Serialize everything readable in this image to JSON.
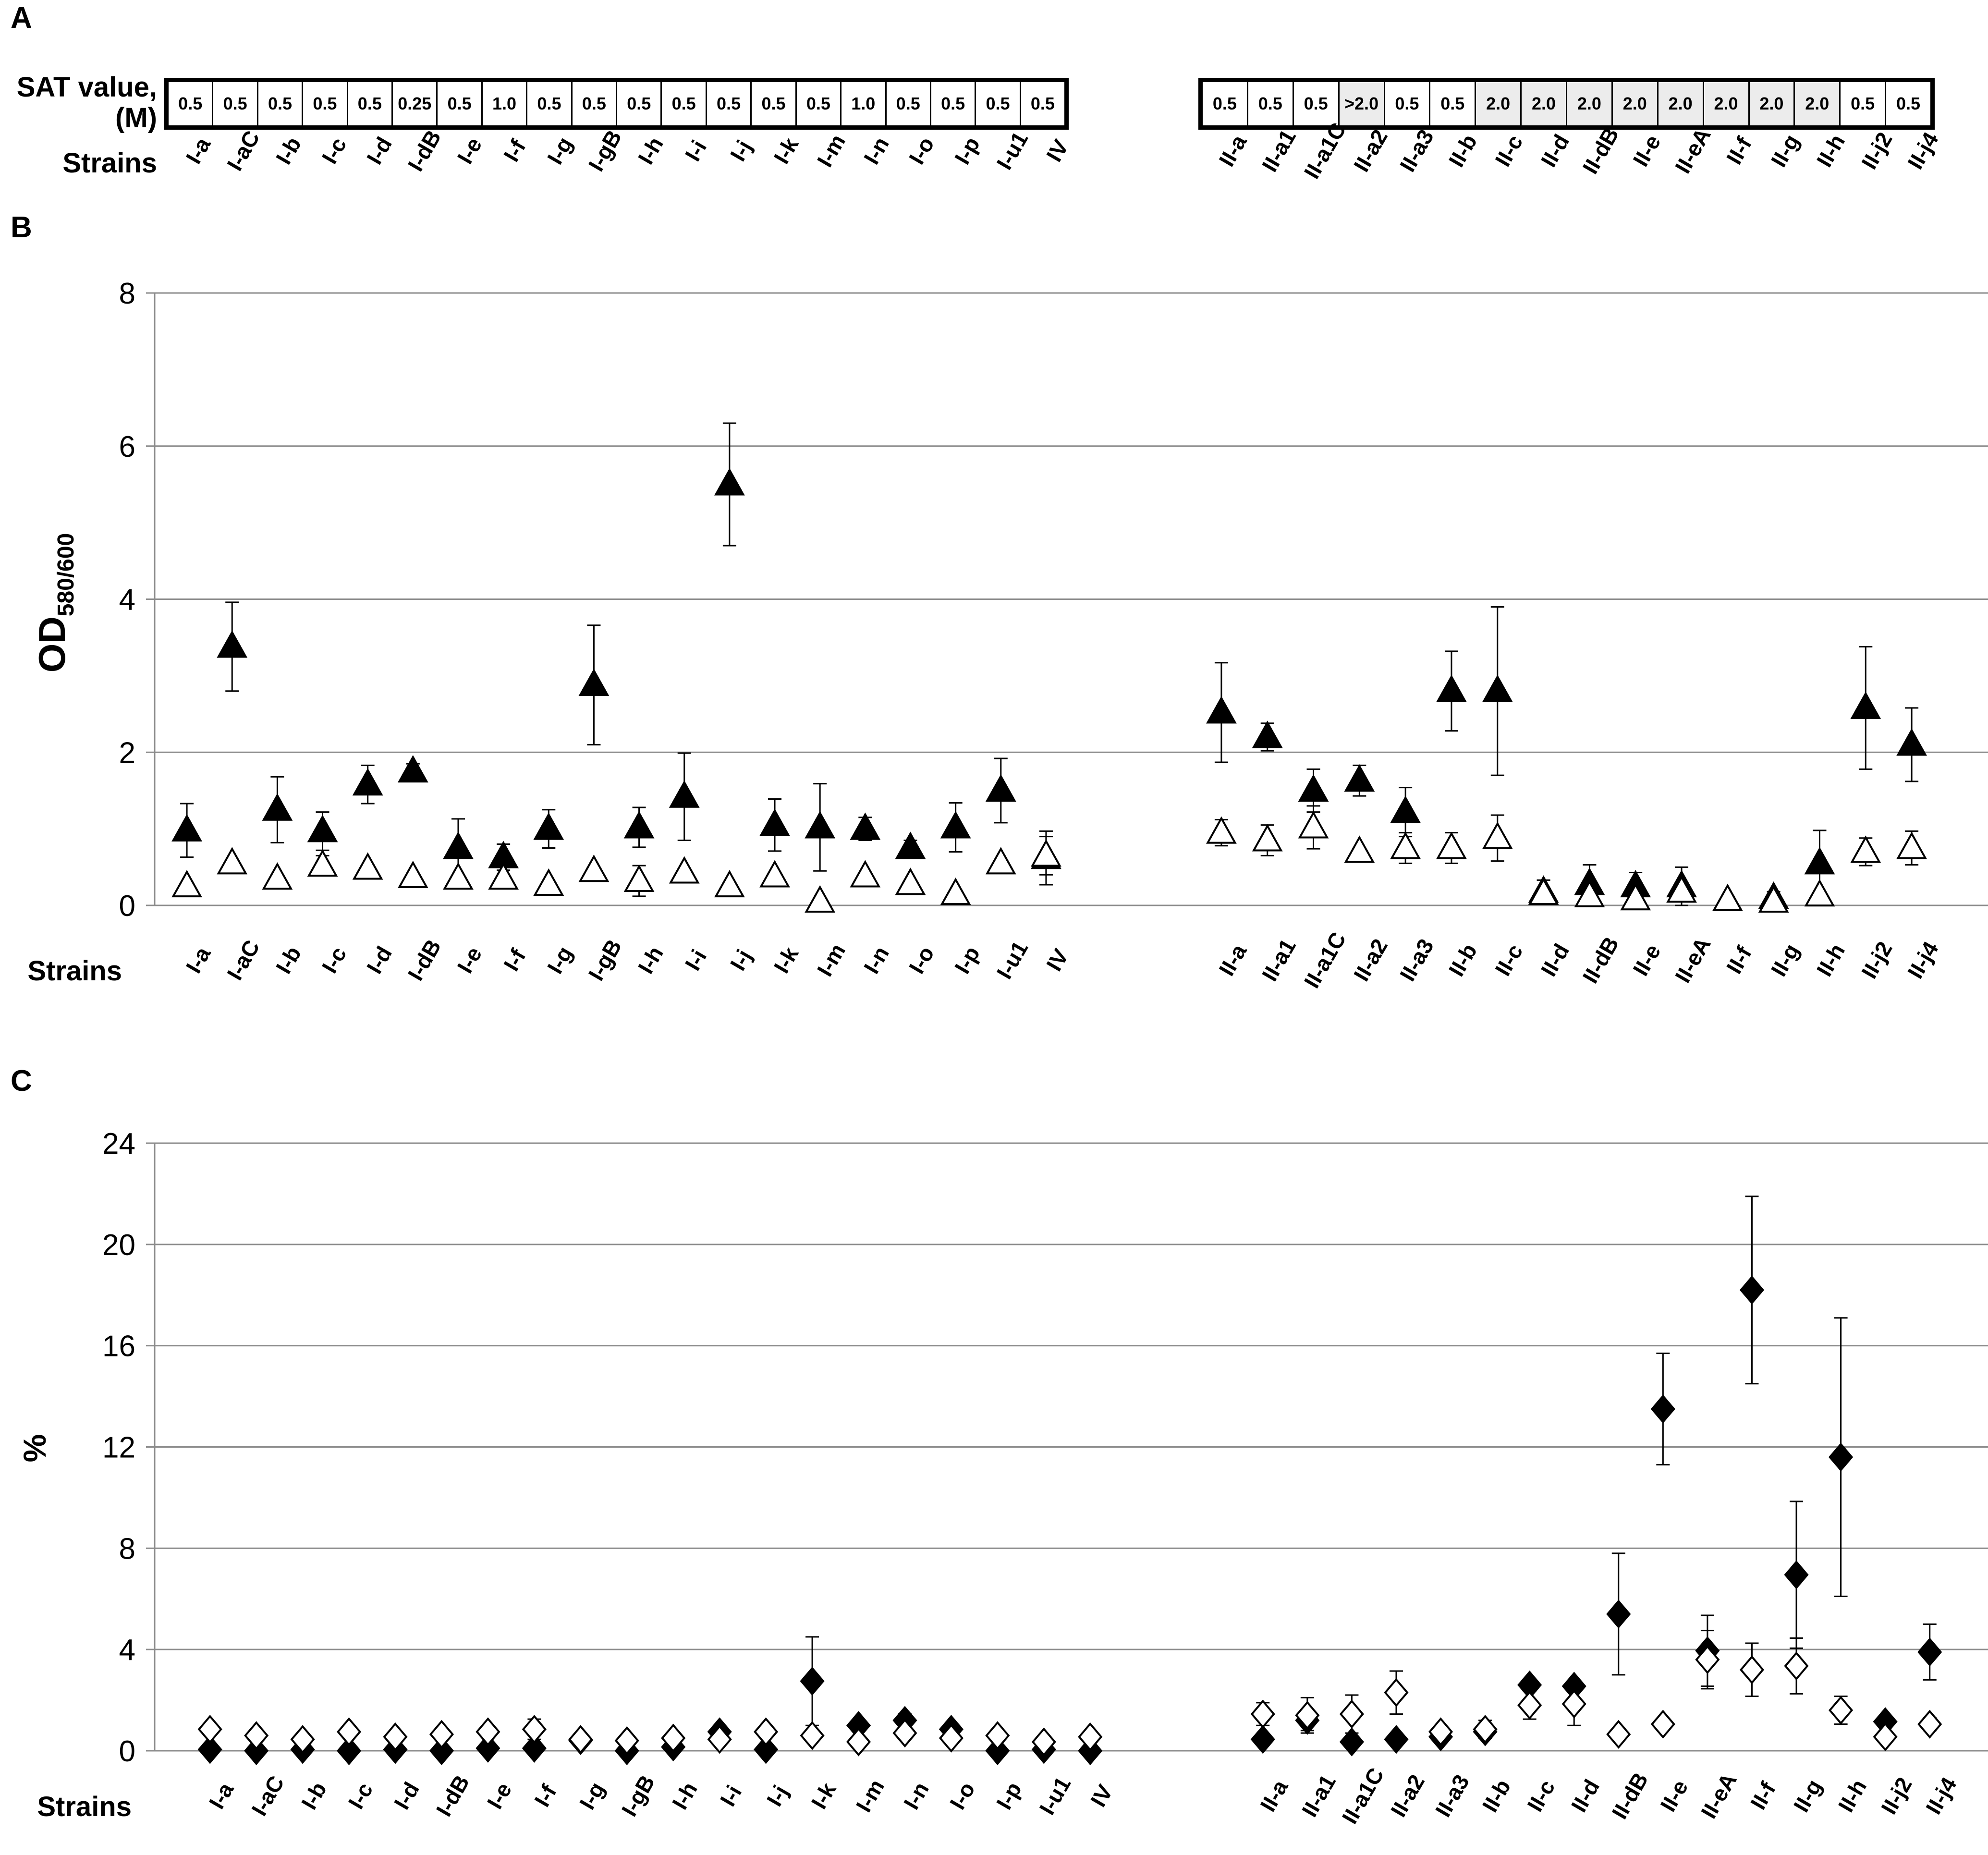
{
  "panels": {
    "a": "A",
    "b": "B",
    "c": "C"
  },
  "sat": {
    "label_line1": "SAT value,",
    "label_line2": "(M)",
    "strains_label": "Strains",
    "group1": {
      "strains": [
        "I-a",
        "I-aC",
        "I-b",
        "I-c",
        "I-d",
        "I-dB",
        "I-e",
        "I-f",
        "I-g",
        "I-gB",
        "I-h",
        "I-i",
        "I-j",
        "I-k",
        "I-m",
        "I-n",
        "I-o",
        "I-p",
        "I-u1",
        "IV"
      ],
      "values": [
        "0.5",
        "0.5",
        "0.5",
        "0.5",
        "0.5",
        "0.25",
        "0.5",
        "1.0",
        "0.5",
        "0.5",
        "0.5",
        "0.5",
        "0.5",
        "0.5",
        "0.5",
        "1.0",
        "0.5",
        "0.5",
        "0.5",
        "0.5"
      ]
    },
    "group2": {
      "strains": [
        "II-a",
        "II-a1",
        "II-a1C",
        "II-a2",
        "II-a3",
        "II-b",
        "II-c",
        "II-d",
        "II-dB",
        "II-e",
        "II-eA",
        "II-f",
        "II-g",
        "II-h",
        "II-j2",
        "II-j4"
      ],
      "values": [
        "0.5",
        "0.5",
        "0.5",
        ">2.0",
        "0.5",
        "0.5",
        "2.0",
        "2.0",
        "2.0",
        "2.0",
        "2.0",
        "2.0",
        "2.0",
        "2.0",
        "0.5",
        "0.5"
      ]
    }
  },
  "chart_data": [
    {
      "type": "scatter",
      "ylabel_main": "OD",
      "ylabel_sub": "580/600",
      "xlabel": "Strains",
      "ylim": [
        0,
        8
      ],
      "yticks": [
        0,
        2,
        4,
        6,
        8
      ],
      "grid": true,
      "categories_group1": [
        "I-a",
        "I-aC",
        "I-b",
        "I-c",
        "I-d",
        "I-dB",
        "I-e",
        "I-f",
        "I-g",
        "I-gB",
        "I-h",
        "I-i",
        "I-j",
        "I-k",
        "I-m",
        "I-n",
        "I-o",
        "I-p",
        "I-u1",
        "IV"
      ],
      "categories_group2": [
        "II-a",
        "II-a1",
        "II-a1C",
        "II-a2",
        "II-a3",
        "II-b",
        "II-c",
        "II-d",
        "II-dB",
        "II-e",
        "II-eA",
        "II-f",
        "II-g",
        "II-h",
        "II-j2",
        "II-j4"
      ],
      "series": [
        {
          "marker": "filled-triangle",
          "group1_values": [
            0.98,
            3.38,
            1.25,
            0.97,
            1.58,
            1.75,
            0.75,
            0.63,
            1.0,
            2.88,
            1.02,
            1.42,
            5.5,
            1.05,
            1.02,
            1.0,
            0.75,
            1.02,
            1.5,
            0.62
          ],
          "group1_errors": [
            0.35,
            0.58,
            0.43,
            0.25,
            0.25,
            0.1,
            0.38,
            0.17,
            0.25,
            0.78,
            0.26,
            0.57,
            0.8,
            0.34,
            0.57,
            0.15,
            0.1,
            0.32,
            0.42,
            0.35
          ],
          "group2_values": [
            2.52,
            2.2,
            1.5,
            1.63,
            1.22,
            2.8,
            2.8,
            0.18,
            0.28,
            0.25,
            0.25,
            0.07,
            0.1,
            0.55,
            2.58,
            2.1
          ],
          "group2_errors": [
            0.65,
            0.18,
            0.28,
            0.2,
            0.32,
            0.52,
            1.1,
            0.15,
            0.25,
            0.18,
            0.25,
            0.05,
            0.08,
            0.43,
            0.8,
            0.48
          ]
        },
        {
          "marker": "open-triangle",
          "group1_values": [
            0.25,
            0.55,
            0.35,
            0.52,
            0.48,
            0.37,
            0.35,
            0.35,
            0.27,
            0.45,
            0.32,
            0.43,
            0.25,
            0.38,
            0.05,
            0.38,
            0.28,
            0.15,
            0.55,
            0.65
          ],
          "group1_errors": [
            0.0,
            0.0,
            0.0,
            0.13,
            0.0,
            0.0,
            0.0,
            0.0,
            0.0,
            0.0,
            0.2,
            0.0,
            0.0,
            0.0,
            0.0,
            0.0,
            0.0,
            0.0,
            0.0,
            0.25
          ],
          "group2_values": [
            0.95,
            0.85,
            1.02,
            0.7,
            0.75,
            0.75,
            0.88,
            0.15,
            0.12,
            0.08,
            0.18,
            0.07,
            0.05,
            0.13,
            0.7,
            0.75
          ],
          "group2_errors": [
            0.17,
            0.2,
            0.28,
            0.0,
            0.2,
            0.2,
            0.3,
            0.0,
            0.0,
            0.0,
            0.0,
            0.0,
            0.0,
            0.0,
            0.18,
            0.22
          ]
        }
      ]
    },
    {
      "type": "scatter",
      "ylabel_main": "%",
      "xlabel": "Strains",
      "ylim": [
        0,
        24
      ],
      "yticks": [
        0,
        4,
        8,
        12,
        16,
        20,
        24
      ],
      "grid": true,
      "categories_group1": [
        "I-a",
        "I-aC",
        "I-b",
        "I-c",
        "I-d",
        "I-dB",
        "I-e",
        "I-f",
        "I-g",
        "I-gB",
        "I-h",
        "I-i",
        "I-j",
        "I-k",
        "I-m",
        "I-n",
        "I-o",
        "I-p",
        "I-u1",
        "IV"
      ],
      "categories_group2": [
        "II-a",
        "II-a1",
        "II-a1C",
        "II-a2",
        "II-a3",
        "II-b",
        "II-c",
        "II-d",
        "II-dB",
        "II-e",
        "II-eA",
        "II-f",
        "II-g",
        "II-h",
        "II-j2",
        "II-j4"
      ],
      "series": [
        {
          "marker": "filled-diamond",
          "group1_values": [
            0.05,
            0.0,
            0.05,
            0.0,
            0.05,
            0.0,
            0.1,
            0.1,
            0.4,
            0.0,
            0.15,
            0.75,
            0.05,
            2.75,
            1.0,
            1.2,
            0.85,
            0.0,
            0.05,
            0.0
          ],
          "group1_errors": [
            0.0,
            0.0,
            0.0,
            0.0,
            0.0,
            0.0,
            0.0,
            0.0,
            0.0,
            0.0,
            0.0,
            0.0,
            0.0,
            1.75,
            0.0,
            0.25,
            0.0,
            0.0,
            0.0,
            0.0
          ],
          "group2_values": [
            0.45,
            1.2,
            0.35,
            0.45,
            0.55,
            0.75,
            2.6,
            2.55,
            5.4,
            13.5,
            3.95,
            18.2,
            6.95,
            11.6,
            1.15,
            3.9
          ],
          "group2_errors": [
            0.0,
            0.4,
            0.0,
            0.0,
            0.0,
            0.0,
            0.0,
            0.0,
            2.4,
            2.2,
            1.4,
            3.7,
            2.9,
            5.5,
            0.0,
            1.1
          ]
        },
        {
          "marker": "open-diamond",
          "group1_values": [
            0.85,
            0.6,
            0.45,
            0.75,
            0.55,
            0.65,
            0.75,
            0.85,
            0.45,
            0.4,
            0.5,
            0.45,
            0.75,
            0.6,
            0.35,
            0.7,
            0.5,
            0.6,
            0.35,
            0.55
          ],
          "group1_errors": [
            0.0,
            0.0,
            0.0,
            0.0,
            0.0,
            0.0,
            0.0,
            0.4,
            0.0,
            0.0,
            0.0,
            0.0,
            0.0,
            0.0,
            0.0,
            0.0,
            0.0,
            0.0,
            0.0,
            0.0
          ],
          "group2_values": [
            1.45,
            1.4,
            1.45,
            2.3,
            0.75,
            0.85,
            1.8,
            1.85,
            0.65,
            1.05,
            3.6,
            3.2,
            3.35,
            1.6,
            0.55,
            1.05
          ],
          "group2_errors": [
            0.45,
            0.7,
            0.75,
            0.85,
            0.0,
            0.35,
            0.55,
            0.85,
            0.0,
            0.0,
            1.15,
            1.05,
            1.1,
            0.55,
            0.0,
            0.25
          ]
        }
      ]
    }
  ]
}
